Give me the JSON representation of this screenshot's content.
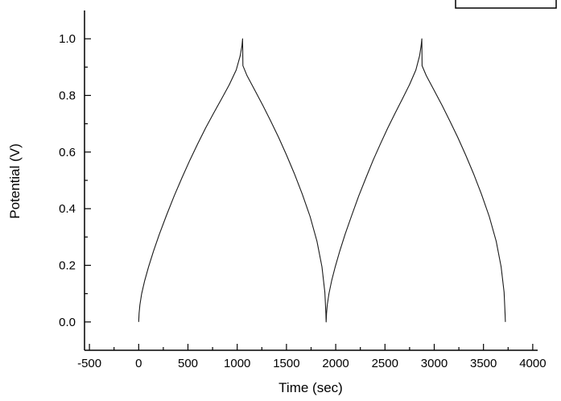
{
  "page": {
    "background": "#ffffff"
  },
  "chart_data": {
    "type": "line",
    "xlabel": "Time (sec)",
    "ylabel": "Potential (V)",
    "xlim": [
      -550,
      4050
    ],
    "ylim": [
      -0.1,
      1.1
    ],
    "x_tick_values": [
      -500,
      0,
      500,
      1000,
      1500,
      2000,
      2500,
      3000,
      3500,
      4000
    ],
    "x_tick_labels": [
      "-500",
      "0",
      "500",
      "1000",
      "1500",
      "2000",
      "2500",
      "3000",
      "3500",
      "4000"
    ],
    "y_tick_values": [
      0.0,
      0.2,
      0.4,
      0.6,
      0.8,
      1.0
    ],
    "y_tick_labels": [
      "0.0",
      "0.2",
      "0.4",
      "0.6",
      "0.8",
      "1.0"
    ],
    "grid": false,
    "frame": "axes-left-bottom",
    "tick_direction": "in",
    "line_color": "#000000",
    "legend": {
      "visible": true,
      "position": "top-right",
      "clipped_by_image_edge": true,
      "entries": []
    },
    "series": [
      {
        "name": "Potential",
        "color": "#000000",
        "points": [
          [
            0,
            0.0
          ],
          [
            4,
            0.03
          ],
          [
            12,
            0.06
          ],
          [
            30,
            0.1
          ],
          [
            60,
            0.145
          ],
          [
            100,
            0.195
          ],
          [
            150,
            0.25
          ],
          [
            210,
            0.31
          ],
          [
            280,
            0.375
          ],
          [
            360,
            0.445
          ],
          [
            440,
            0.51
          ],
          [
            520,
            0.572
          ],
          [
            600,
            0.63
          ],
          [
            680,
            0.685
          ],
          [
            760,
            0.737
          ],
          [
            840,
            0.787
          ],
          [
            920,
            0.838
          ],
          [
            990,
            0.89
          ],
          [
            1030,
            0.94
          ],
          [
            1048,
            0.975
          ],
          [
            1055,
            1.0
          ],
          [
            1058,
            0.905
          ],
          [
            1100,
            0.87
          ],
          [
            1180,
            0.818
          ],
          [
            1260,
            0.765
          ],
          [
            1340,
            0.71
          ],
          [
            1420,
            0.652
          ],
          [
            1500,
            0.59
          ],
          [
            1580,
            0.524
          ],
          [
            1660,
            0.452
          ],
          [
            1740,
            0.372
          ],
          [
            1810,
            0.285
          ],
          [
            1860,
            0.195
          ],
          [
            1890,
            0.105
          ],
          [
            1900,
            0.03
          ],
          [
            1903,
            0.0
          ],
          [
            1907,
            0.03
          ],
          [
            1914,
            0.06
          ],
          [
            1931,
            0.1
          ],
          [
            1958,
            0.145
          ],
          [
            1995,
            0.195
          ],
          [
            2041,
            0.25
          ],
          [
            2096,
            0.31
          ],
          [
            2161,
            0.375
          ],
          [
            2234,
            0.445
          ],
          [
            2308,
            0.51
          ],
          [
            2381,
            0.572
          ],
          [
            2455,
            0.63
          ],
          [
            2529,
            0.685
          ],
          [
            2602,
            0.737
          ],
          [
            2676,
            0.787
          ],
          [
            2749,
            0.838
          ],
          [
            2814,
            0.89
          ],
          [
            2851,
            0.94
          ],
          [
            2867,
            0.975
          ],
          [
            2874,
            1.0
          ],
          [
            2877,
            0.905
          ],
          [
            2919,
            0.87
          ],
          [
            2999,
            0.818
          ],
          [
            3079,
            0.765
          ],
          [
            3159,
            0.71
          ],
          [
            3239,
            0.652
          ],
          [
            3319,
            0.59
          ],
          [
            3399,
            0.524
          ],
          [
            3479,
            0.452
          ],
          [
            3559,
            0.372
          ],
          [
            3629,
            0.285
          ],
          [
            3679,
            0.195
          ],
          [
            3709,
            0.105
          ],
          [
            3719,
            0.03
          ],
          [
            3722,
            0.0
          ]
        ]
      }
    ]
  }
}
